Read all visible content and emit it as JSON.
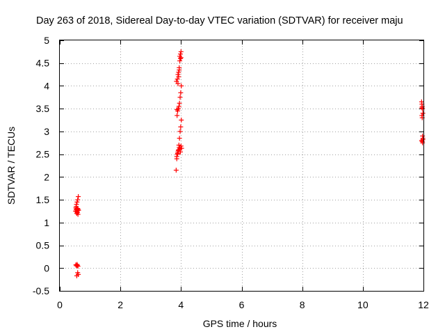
{
  "chart_data": {
    "type": "scatter",
    "title": "Day 263 of 2018, Sidereal Day-to-day VTEC variation (SDTVAR) for receiver maju",
    "xlabel": "GPS time / hours",
    "ylabel": "SDTVAR / TECUs",
    "xlim": [
      0,
      12
    ],
    "ylim": [
      -0.5,
      5
    ],
    "grid": true,
    "x_ticks": [
      0,
      2,
      4,
      6,
      8,
      10,
      12
    ],
    "x_tick_labels": [
      "0",
      "2",
      "4",
      "6",
      "8",
      "10",
      "12"
    ],
    "y_ticks": [
      -0.5,
      0,
      0.5,
      1,
      1.5,
      2,
      2.5,
      3,
      3.5,
      4,
      4.5,
      5
    ],
    "y_tick_labels": [
      "-0.5",
      "0",
      "0.5",
      "1",
      "1.5",
      "2",
      "2.5",
      "3",
      "3.5",
      "4",
      "4.5",
      "5"
    ],
    "marker": "+",
    "color": "#ff0000",
    "series": [
      {
        "name": "SDTVAR",
        "x": [
          0.52,
          0.54,
          0.56,
          0.58,
          0.6,
          0.62,
          0.55,
          0.57,
          0.59,
          0.61,
          0.53,
          0.56,
          0.58,
          0.6,
          0.54,
          0.57,
          0.59,
          0.53,
          0.55,
          0.57,
          0.59,
          0.61,
          0.56,
          0.58,
          0.6,
          3.84,
          3.86,
          3.88,
          3.9,
          3.92,
          3.94,
          3.96,
          3.98,
          4.0,
          4.02,
          3.87,
          3.89,
          3.91,
          3.93,
          3.95,
          3.97,
          3.99,
          4.01,
          3.85,
          3.88,
          3.9,
          3.92,
          3.94,
          3.96,
          3.98,
          4.0,
          3.86,
          3.89,
          3.91,
          3.93,
          3.95,
          3.97,
          3.99,
          4.01,
          3.87,
          3.9,
          3.92,
          3.94,
          3.96,
          3.98,
          4.0,
          11.94,
          11.95,
          11.96,
          11.97,
          11.98,
          11.95,
          11.96,
          11.97,
          11.98,
          11.94,
          11.96,
          11.97,
          11.98,
          11.95
        ],
        "y": [
          1.25,
          1.28,
          1.3,
          1.22,
          1.18,
          1.27,
          1.4,
          1.45,
          1.5,
          1.57,
          1.32,
          1.2,
          1.26,
          1.29,
          1.35,
          1.23,
          1.31,
          0.07,
          0.05,
          0.08,
          -0.1,
          -0.14,
          -0.17,
          0.06,
          0.04,
          2.15,
          2.4,
          2.5,
          2.55,
          2.6,
          2.65,
          2.62,
          2.55,
          2.68,
          2.63,
          3.35,
          3.45,
          3.5,
          3.55,
          3.62,
          3.75,
          3.85,
          4.0,
          4.1,
          4.15,
          4.25,
          4.3,
          4.35,
          4.55,
          4.6,
          4.62,
          2.45,
          2.52,
          2.58,
          2.7,
          2.85,
          3.0,
          3.1,
          3.25,
          3.48,
          4.05,
          4.2,
          4.4,
          4.65,
          4.7,
          4.75,
          3.65,
          3.6,
          3.55,
          3.5,
          3.4,
          3.35,
          3.3,
          2.9,
          2.85,
          2.8,
          2.78,
          2.75,
          2.82,
          3.52
        ]
      }
    ]
  }
}
